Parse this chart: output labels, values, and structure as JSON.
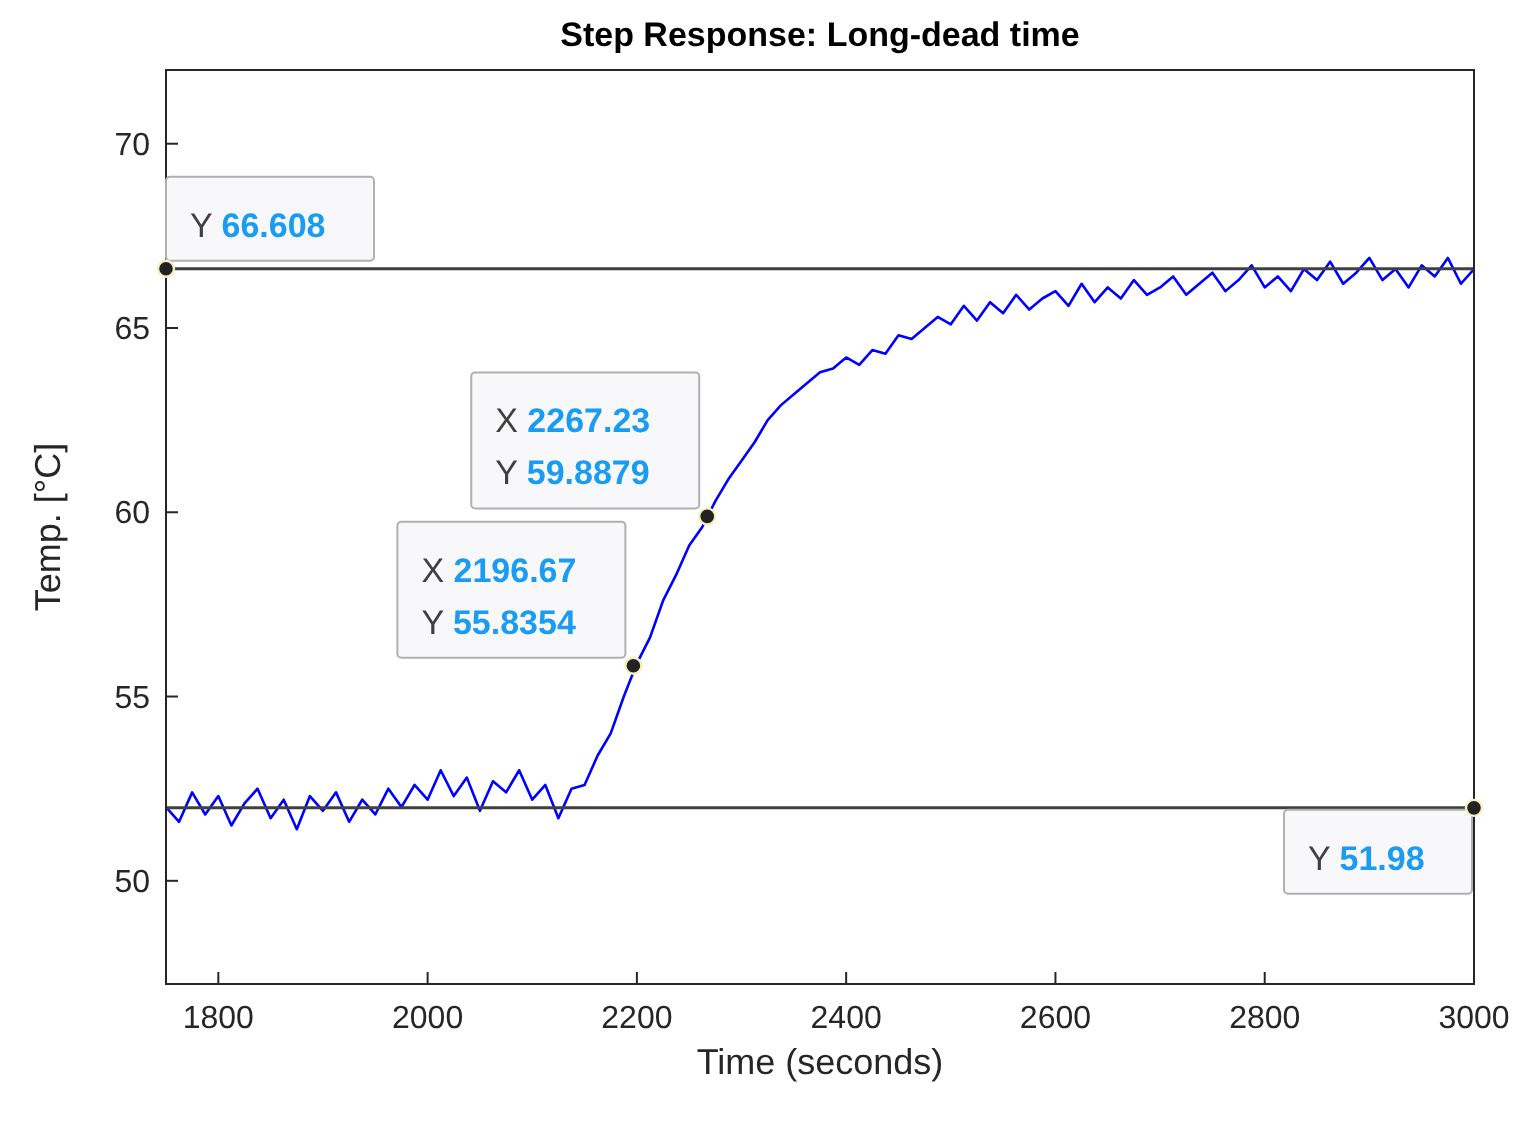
{
  "chart_data": {
    "type": "line",
    "title": "Step Response: Long-dead time",
    "xlabel": "Time (seconds)",
    "ylabel": "Temp. [°C]",
    "xlim": [
      1750,
      3000
    ],
    "xticks": [
      1800,
      2000,
      2200,
      2400,
      2600,
      2800,
      3000
    ],
    "ylim": [
      47.2,
      72
    ],
    "yticks": [
      50,
      55,
      60,
      65,
      70
    ],
    "grid": false,
    "marker": "none",
    "line_style": "solid",
    "x": [
      1750,
      1762.5,
      1775,
      1787.5,
      1800,
      1812.5,
      1825,
      1837.5,
      1850,
      1862.5,
      1875,
      1887.5,
      1900,
      1912.5,
      1925,
      1937.5,
      1950,
      1962.5,
      1975,
      1987.5,
      2000,
      2012.5,
      2025,
      2037.5,
      2050,
      2062.5,
      2075,
      2087.5,
      2100,
      2112.5,
      2125,
      2137.5,
      2150,
      2162.5,
      2175,
      2187.5,
      2200,
      2212.5,
      2225,
      2237.5,
      2250,
      2262.5,
      2275,
      2287.5,
      2300,
      2312.5,
      2325,
      2337.5,
      2350,
      2362.5,
      2375,
      2387.5,
      2400,
      2412.5,
      2425,
      2437.5,
      2450,
      2462.5,
      2475,
      2487.5,
      2500,
      2512.5,
      2525,
      2537.5,
      2550,
      2562.5,
      2575,
      2587.5,
      2600,
      2612.5,
      2625,
      2637.5,
      2650,
      2662.5,
      2675,
      2687.5,
      2700,
      2712.5,
      2725,
      2737.5,
      2750,
      2762.5,
      2775,
      2787.5,
      2800,
      2812.5,
      2825,
      2837.5,
      2850,
      2862.5,
      2875,
      2887.5,
      2900,
      2912.5,
      2925,
      2937.5,
      2950,
      2962.5,
      2975,
      2987.5,
      3000
    ],
    "series": [
      {
        "color": "#0000ff",
        "values": [
          52.0,
          51.6,
          52.4,
          51.8,
          52.3,
          51.5,
          52.1,
          52.5,
          51.7,
          52.2,
          51.4,
          52.3,
          51.9,
          52.4,
          51.6,
          52.2,
          51.8,
          52.5,
          52.0,
          52.6,
          52.2,
          53.0,
          52.3,
          52.8,
          51.9,
          52.7,
          52.4,
          53.0,
          52.2,
          52.6,
          51.7,
          52.5,
          52.6,
          53.4,
          54.0,
          55.0,
          55.9,
          56.6,
          57.6,
          58.3,
          59.1,
          59.6,
          60.3,
          60.9,
          61.4,
          61.9,
          62.5,
          62.9,
          63.2,
          63.5,
          63.8,
          63.9,
          64.2,
          64.0,
          64.4,
          64.3,
          64.8,
          64.7,
          65.0,
          65.3,
          65.1,
          65.6,
          65.2,
          65.7,
          65.4,
          65.9,
          65.5,
          65.8,
          66.0,
          65.6,
          66.2,
          65.7,
          66.1,
          65.8,
          66.3,
          65.9,
          66.1,
          66.4,
          65.9,
          66.2,
          66.5,
          66.0,
          66.3,
          66.7,
          66.1,
          66.4,
          66.0,
          66.6,
          66.3,
          66.8,
          66.2,
          66.5,
          66.9,
          66.3,
          66.6,
          66.1,
          66.7,
          66.4,
          66.9,
          66.2,
          66.6
        ]
      }
    ],
    "ref_lines": [
      {
        "axis": "y",
        "value": 66.608,
        "color": "#404040",
        "line_style": "solid"
      },
      {
        "axis": "y",
        "value": 51.98,
        "color": "#404040",
        "line_style": "solid"
      }
    ],
    "annotations": [
      {
        "text": "Y 66.608",
        "x": 1750,
        "y": 66.608
      },
      {
        "text": "X 2267.23\nY 59.8879",
        "x": 2267.23,
        "y": 59.8879
      },
      {
        "text": "X 2196.67\nY 55.8354",
        "x": 2196.67,
        "y": 55.8354
      },
      {
        "text": "Y 51.98",
        "x": 3000,
        "y": 51.98
      }
    ]
  }
}
